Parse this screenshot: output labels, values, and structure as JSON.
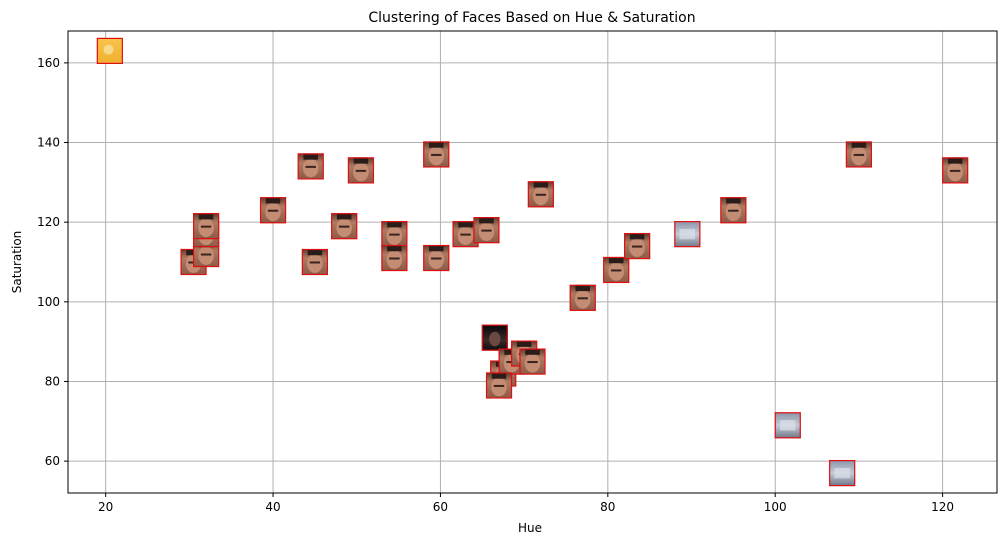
{
  "chart_data": {
    "type": "scatter",
    "title": "Clustering of Faces Based on Hue & Saturation",
    "xlabel": "Hue",
    "ylabel": "Saturation",
    "xlim": [
      15.5,
      126.5
    ],
    "ylim": [
      52,
      168
    ],
    "xticks": [
      20,
      40,
      60,
      80,
      100,
      120
    ],
    "yticks": [
      60,
      80,
      100,
      120,
      140,
      160
    ],
    "grid": true,
    "marker": "face-thumbnail-image",
    "points": [
      {
        "x": 20.5,
        "y": 163,
        "tone": "yellow"
      },
      {
        "x": 30.5,
        "y": 110,
        "tone": "skin"
      },
      {
        "x": 32,
        "y": 112,
        "tone": "skin"
      },
      {
        "x": 32,
        "y": 117,
        "tone": "skin"
      },
      {
        "x": 32,
        "y": 119,
        "tone": "skin"
      },
      {
        "x": 40,
        "y": 123,
        "tone": "skin"
      },
      {
        "x": 44.5,
        "y": 134,
        "tone": "skin"
      },
      {
        "x": 45,
        "y": 110,
        "tone": "skin"
      },
      {
        "x": 48.5,
        "y": 119,
        "tone": "skin"
      },
      {
        "x": 50.5,
        "y": 133,
        "tone": "skin"
      },
      {
        "x": 54.5,
        "y": 117,
        "tone": "skin"
      },
      {
        "x": 54.5,
        "y": 111,
        "tone": "skin"
      },
      {
        "x": 59.5,
        "y": 137,
        "tone": "skin"
      },
      {
        "x": 59.5,
        "y": 111,
        "tone": "skin"
      },
      {
        "x": 63,
        "y": 117,
        "tone": "skin"
      },
      {
        "x": 65.5,
        "y": 118,
        "tone": "skin"
      },
      {
        "x": 66.5,
        "y": 91,
        "tone": "dark"
      },
      {
        "x": 67.5,
        "y": 82,
        "tone": "skin"
      },
      {
        "x": 68.5,
        "y": 85,
        "tone": "skin"
      },
      {
        "x": 70,
        "y": 87,
        "tone": "skin"
      },
      {
        "x": 71,
        "y": 85,
        "tone": "skin"
      },
      {
        "x": 67,
        "y": 79,
        "tone": "skin"
      },
      {
        "x": 72,
        "y": 127,
        "tone": "skin"
      },
      {
        "x": 77,
        "y": 101,
        "tone": "skin"
      },
      {
        "x": 81,
        "y": 108,
        "tone": "skin"
      },
      {
        "x": 83.5,
        "y": 114,
        "tone": "skin"
      },
      {
        "x": 89.5,
        "y": 117,
        "tone": "gray"
      },
      {
        "x": 95,
        "y": 123,
        "tone": "skin"
      },
      {
        "x": 101.5,
        "y": 69,
        "tone": "gray"
      },
      {
        "x": 108,
        "y": 57,
        "tone": "gray"
      },
      {
        "x": 110,
        "y": 137,
        "tone": "skin"
      },
      {
        "x": 121.5,
        "y": 133,
        "tone": "skin"
      }
    ]
  }
}
